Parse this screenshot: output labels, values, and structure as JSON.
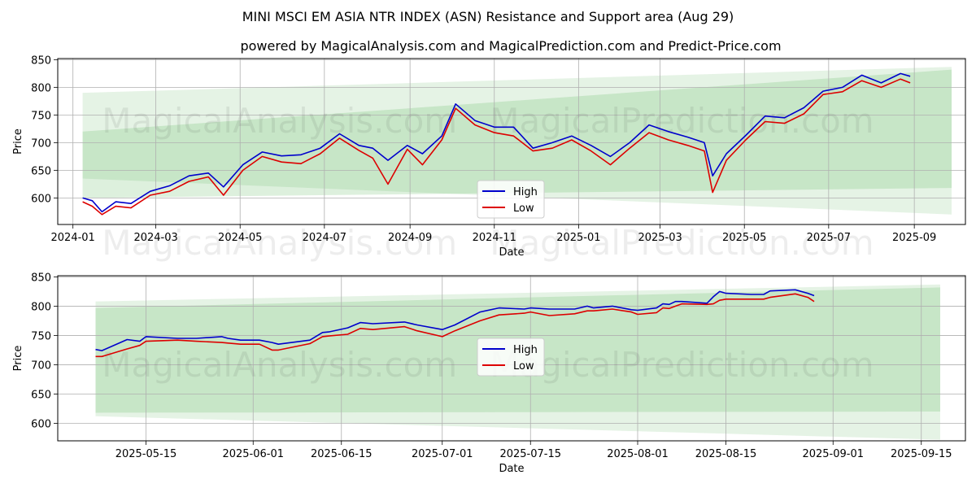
{
  "title": "MINI MSCI EM ASIA NTR INDEX (ASN) Resistance and Support area (Aug 29)",
  "subtitle": "powered by MagicalAnalysis.com and MagicalPrediction.com and Predict-Price.com",
  "watermarks": [
    "MagicalAnalysis.com",
    "MagicalPrediction.com"
  ],
  "colors": {
    "high": "#0000cc",
    "low": "#dd0000",
    "band": "#2ca02c",
    "grid": "#b0b0b0"
  },
  "chart_data": [
    {
      "type": "line",
      "xlabel": "Date",
      "ylabel": "Price",
      "xlim": [
        "2023-12-21",
        "2025-10-08"
      ],
      "ylim": [
        552,
        852
      ],
      "grid": true,
      "legend_position": "center-bottom",
      "x_ticks": [
        "2024-01",
        "2024-03",
        "2024-05",
        "2024-07",
        "2024-09",
        "2024-11",
        "2025-01",
        "2025-03",
        "2025-05",
        "2025-07",
        "2025-09"
      ],
      "y_ticks": [
        600,
        650,
        700,
        750,
        800,
        850
      ],
      "bands": [
        {
          "name": "outer",
          "x": [
            "2024-01-08",
            "2025-09-28"
          ],
          "upper": [
            790,
            837
          ],
          "lower": [
            635,
            570
          ]
        },
        {
          "name": "inner",
          "x": [
            "2024-01-08",
            "2025-09-28"
          ],
          "upper": [
            720,
            832
          ],
          "lower": [
            600,
            618
          ]
        }
      ],
      "series": [
        {
          "name": "High",
          "x": [
            "2024-01-08",
            "2024-01-15",
            "2024-01-22",
            "2024-02-01",
            "2024-02-12",
            "2024-02-26",
            "2024-03-11",
            "2024-03-25",
            "2024-04-08",
            "2024-04-19",
            "2024-05-03",
            "2024-05-17",
            "2024-05-31",
            "2024-06-14",
            "2024-06-28",
            "2024-07-12",
            "2024-07-26",
            "2024-08-05",
            "2024-08-16",
            "2024-08-30",
            "2024-09-10",
            "2024-09-24",
            "2024-10-04",
            "2024-10-18",
            "2024-11-01",
            "2024-11-15",
            "2024-11-29",
            "2024-12-13",
            "2024-12-27",
            "2025-01-10",
            "2025-01-24",
            "2025-02-07",
            "2025-02-21",
            "2025-03-07",
            "2025-03-21",
            "2025-04-02",
            "2025-04-08",
            "2025-04-18",
            "2025-05-02",
            "2025-05-16",
            "2025-05-30",
            "2025-06-13",
            "2025-06-27",
            "2025-07-11",
            "2025-07-25",
            "2025-08-08",
            "2025-08-22",
            "2025-08-29"
          ],
          "values": [
            600,
            595,
            575,
            593,
            590,
            612,
            622,
            640,
            645,
            620,
            660,
            683,
            676,
            678,
            690,
            716,
            695,
            690,
            668,
            695,
            680,
            712,
            770,
            740,
            728,
            728,
            690,
            700,
            712,
            695,
            675,
            700,
            732,
            720,
            710,
            700,
            640,
            680,
            713,
            748,
            745,
            763,
            793,
            800,
            822,
            808,
            825,
            820
          ]
        },
        {
          "name": "Low",
          "x": [
            "2024-01-08",
            "2024-01-15",
            "2024-01-22",
            "2024-02-01",
            "2024-02-12",
            "2024-02-26",
            "2024-03-11",
            "2024-03-25",
            "2024-04-08",
            "2024-04-19",
            "2024-05-03",
            "2024-05-17",
            "2024-05-31",
            "2024-06-14",
            "2024-06-28",
            "2024-07-12",
            "2024-07-26",
            "2024-08-05",
            "2024-08-16",
            "2024-08-30",
            "2024-09-10",
            "2024-09-24",
            "2024-10-04",
            "2024-10-18",
            "2024-11-01",
            "2024-11-15",
            "2024-11-29",
            "2024-12-13",
            "2024-12-27",
            "2025-01-10",
            "2025-01-24",
            "2025-02-07",
            "2025-02-21",
            "2025-03-07",
            "2025-03-21",
            "2025-04-02",
            "2025-04-08",
            "2025-04-18",
            "2025-05-02",
            "2025-05-16",
            "2025-05-30",
            "2025-06-13",
            "2025-06-27",
            "2025-07-11",
            "2025-07-25",
            "2025-08-08",
            "2025-08-22",
            "2025-08-29"
          ],
          "values": [
            593,
            585,
            570,
            585,
            582,
            605,
            612,
            630,
            638,
            605,
            650,
            675,
            665,
            662,
            680,
            708,
            686,
            672,
            625,
            688,
            660,
            705,
            762,
            732,
            718,
            712,
            685,
            690,
            705,
            685,
            660,
            690,
            718,
            705,
            695,
            685,
            610,
            668,
            705,
            738,
            735,
            752,
            787,
            792,
            812,
            800,
            815,
            808
          ]
        }
      ]
    },
    {
      "type": "line",
      "xlabel": "Date",
      "ylabel": "Price",
      "xlim": [
        "2025-05-01",
        "2025-09-22"
      ],
      "ylim": [
        570,
        852
      ],
      "grid": true,
      "legend_position": "center",
      "x_ticks": [
        "2025-05-15",
        "2025-06-01",
        "2025-06-15",
        "2025-07-01",
        "2025-07-15",
        "2025-08-01",
        "2025-08-15",
        "2025-09-01",
        "2025-09-15"
      ],
      "y_ticks": [
        600,
        650,
        700,
        750,
        800,
        850
      ],
      "bands": [
        {
          "name": "outer",
          "x": [
            "2025-05-07",
            "2025-09-18"
          ],
          "upper": [
            808,
            837
          ],
          "lower": [
            612,
            572
          ]
        },
        {
          "name": "inner",
          "x": [
            "2025-05-07",
            "2025-09-18"
          ],
          "upper": [
            797,
            832
          ],
          "lower": [
            618,
            620
          ]
        }
      ],
      "series": [
        {
          "name": "High",
          "x": [
            "2025-05-07",
            "2025-05-08",
            "2025-05-12",
            "2025-05-14",
            "2025-05-15",
            "2025-05-20",
            "2025-05-23",
            "2025-05-27",
            "2025-05-28",
            "2025-05-30",
            "2025-06-02",
            "2025-06-04",
            "2025-06-05",
            "2025-06-10",
            "2025-06-12",
            "2025-06-13",
            "2025-06-16",
            "2025-06-18",
            "2025-06-20",
            "2025-06-25",
            "2025-06-27",
            "2025-07-01",
            "2025-07-03",
            "2025-07-07",
            "2025-07-10",
            "2025-07-14",
            "2025-07-15",
            "2025-07-18",
            "2025-07-22",
            "2025-07-24",
            "2025-07-25",
            "2025-07-28",
            "2025-07-31",
            "2025-08-01",
            "2025-08-04",
            "2025-08-05",
            "2025-08-06",
            "2025-08-07",
            "2025-08-08",
            "2025-08-12",
            "2025-08-13",
            "2025-08-14",
            "2025-08-15",
            "2025-08-19",
            "2025-08-21",
            "2025-08-22",
            "2025-08-26",
            "2025-08-28",
            "2025-08-29"
          ],
          "values": [
            726,
            724,
            743,
            740,
            748,
            745,
            745,
            748,
            745,
            742,
            742,
            738,
            735,
            742,
            755,
            756,
            763,
            772,
            770,
            773,
            768,
            760,
            768,
            790,
            797,
            795,
            797,
            795,
            795,
            800,
            797,
            800,
            794,
            793,
            797,
            804,
            803,
            808,
            808,
            805,
            816,
            825,
            822,
            820,
            820,
            826,
            828,
            822,
            818
          ]
        },
        {
          "name": "Low",
          "x": [
            "2025-05-07",
            "2025-05-08",
            "2025-05-12",
            "2025-05-14",
            "2025-05-15",
            "2025-05-20",
            "2025-05-23",
            "2025-05-27",
            "2025-05-28",
            "2025-05-30",
            "2025-06-02",
            "2025-06-04",
            "2025-06-05",
            "2025-06-10",
            "2025-06-12",
            "2025-06-13",
            "2025-06-16",
            "2025-06-18",
            "2025-06-20",
            "2025-06-25",
            "2025-06-27",
            "2025-07-01",
            "2025-07-03",
            "2025-07-07",
            "2025-07-10",
            "2025-07-14",
            "2025-07-15",
            "2025-07-18",
            "2025-07-22",
            "2025-07-24",
            "2025-07-25",
            "2025-07-28",
            "2025-07-31",
            "2025-08-01",
            "2025-08-04",
            "2025-08-05",
            "2025-08-06",
            "2025-08-07",
            "2025-08-08",
            "2025-08-12",
            "2025-08-13",
            "2025-08-14",
            "2025-08-15",
            "2025-08-19",
            "2025-08-21",
            "2025-08-22",
            "2025-08-26",
            "2025-08-28",
            "2025-08-29"
          ],
          "values": [
            714,
            714,
            727,
            733,
            740,
            742,
            740,
            738,
            737,
            735,
            735,
            725,
            725,
            736,
            748,
            749,
            752,
            762,
            760,
            765,
            758,
            748,
            758,
            775,
            785,
            788,
            790,
            784,
            787,
            792,
            792,
            795,
            790,
            786,
            789,
            797,
            796,
            800,
            804,
            803,
            804,
            810,
            812,
            812,
            812,
            815,
            821,
            815,
            808
          ]
        }
      ]
    }
  ]
}
